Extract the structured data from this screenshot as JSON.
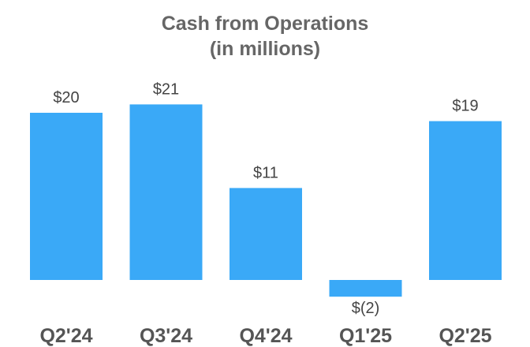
{
  "chart_data": {
    "type": "bar",
    "title": "Cash from Operations",
    "subtitle": "(in millions)",
    "categories": [
      "Q2'24",
      "Q3'24",
      "Q4'24",
      "Q1'25",
      "Q2'25"
    ],
    "values": [
      20,
      21,
      11,
      -2,
      19
    ],
    "data_labels": [
      "$20",
      "$21",
      "$11",
      "$(2)",
      "$19"
    ],
    "bar_color": "#3aa9f7",
    "grid": false,
    "legend": "none",
    "xlabel": "",
    "ylabel": ""
  }
}
